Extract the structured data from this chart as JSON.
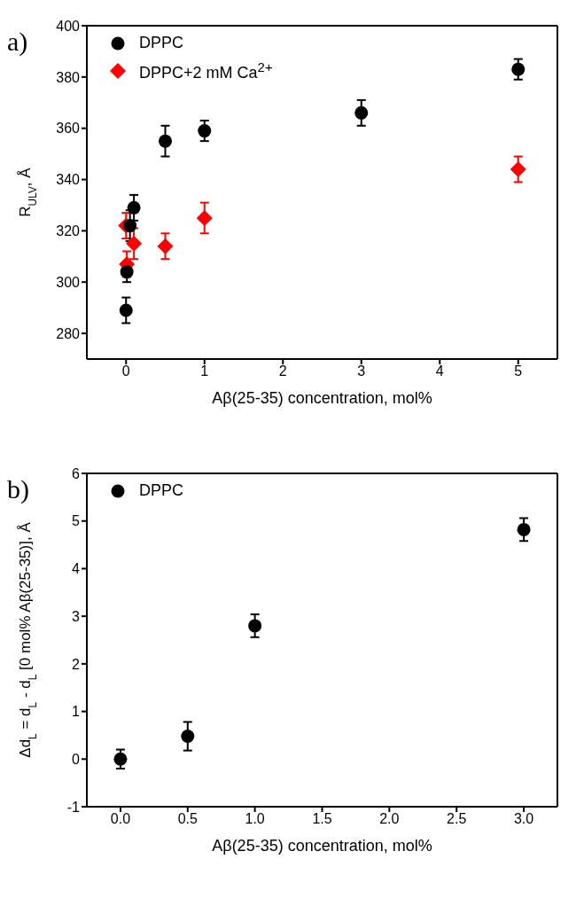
{
  "chart_data": [
    {
      "type": "scatter",
      "xlabel": "Aβ(25-35) concentration, mol%",
      "ylabel": "R$_{ULV}$, Å",
      "annotations": [
        "a)"
      ],
      "xlim": [
        -0.5,
        5.5
      ],
      "xticks": [
        0,
        1,
        2,
        3,
        4,
        5
      ],
      "ylim": [
        270,
        400
      ],
      "yticks": [
        280,
        300,
        320,
        340,
        360,
        380,
        400
      ],
      "legend": "top left",
      "series": [
        {
          "name": "DPPC",
          "color": "#000000",
          "marker": "circle",
          "x": [
            0,
            0.01,
            0.05,
            0.1,
            0.5,
            1,
            3,
            5
          ],
          "values": [
            289,
            304,
            322,
            329,
            355,
            359,
            366,
            383
          ],
          "errors": [
            5,
            4,
            6,
            5,
            6,
            4,
            5,
            4
          ]
        },
        {
          "name": "DPPC+2 mM Ca$^{2+}$",
          "color": "#ff0000",
          "marker": "diamond",
          "x": [
            0,
            0.01,
            0.1,
            0.5,
            1,
            5
          ],
          "values": [
            322,
            307,
            315,
            314,
            325,
            344
          ],
          "errors": [
            5,
            5,
            6,
            5,
            6,
            5
          ]
        }
      ]
    },
    {
      "type": "scatter",
      "xlabel": "Aβ(25-35) concentration, mol%",
      "ylabel": "Δd$_{L}$ = d$_{L}$ - d$_{L}$ [0 mol% Aβ(25-35)], Å",
      "annotations": [
        "b)"
      ],
      "xlim": [
        -0.25,
        3.25
      ],
      "xticks": [
        {
          "value": 0,
          "label": "0.0"
        },
        {
          "value": 0.5,
          "label": "0.5"
        },
        {
          "value": 1,
          "label": "1.0"
        },
        {
          "value": 1.5,
          "label": "1.5"
        },
        {
          "value": 2,
          "label": "2.0"
        },
        {
          "value": 2.5,
          "label": "2.5"
        },
        {
          "value": 3,
          "label": "3.0"
        }
      ],
      "ylim": [
        -1,
        6
      ],
      "yticks": [
        -1,
        0,
        1,
        2,
        3,
        4,
        5,
        6
      ],
      "legend": "top left",
      "series": [
        {
          "name": "DPPC",
          "color": "#000000",
          "marker": "circle",
          "x": [
            0,
            0.5,
            1,
            3
          ],
          "values": [
            0,
            0.48,
            2.8,
            4.82
          ],
          "errors": [
            0.2,
            0.3,
            0.24,
            0.24
          ]
        }
      ]
    }
  ]
}
